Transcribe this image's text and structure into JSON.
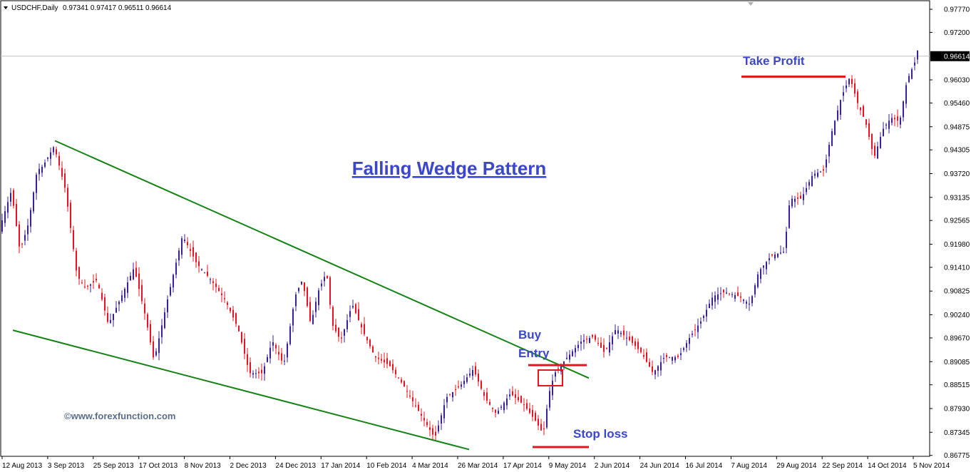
{
  "header": {
    "symbol": "USDCHF,Daily",
    "ohlc": "0.97341 0.97417 0.96511 0.96614"
  },
  "watermark": "©www.forexfunction.com",
  "colors": {
    "bull": "#3c1e96",
    "bear": "#e6141e",
    "trendline": "#148214",
    "annotation_text": "#3c46c8",
    "annotation_line": "#e6141e",
    "price_line": "#c0c0c0"
  },
  "chart_data": {
    "type": "candlestick",
    "title": "Falling Wedge Pattern",
    "ylim": [
      0.8677,
      0.9777
    ],
    "y_ticks": [
      "0.97770",
      "0.97200",
      "0.96614",
      "0.96030",
      "0.95460",
      "0.94875",
      "0.94305",
      "0.93720",
      "0.93135",
      "0.92565",
      "0.91980",
      "0.91410",
      "0.90825",
      "0.90240",
      "0.89670",
      "0.89085",
      "0.88515",
      "0.87930",
      "0.87345",
      "0.86775"
    ],
    "current_price": "0.96614",
    "x_ticks": [
      "12 Aug 2013",
      "3 Sep 2013",
      "25 Sep 2013",
      "17 Oct 2013",
      "8 Nov 2013",
      "2 Dec 2013",
      "24 Dec 2013",
      "17 Jan 2014",
      "10 Feb 2014",
      "4 Mar 2014",
      "26 Mar 2014",
      "17 Apr 2014",
      "9 May 2014",
      "2 Jun 2014",
      "24 Jun 2014",
      "16 Jul 2014",
      "7 Aug 2014",
      "29 Aug 2014",
      "22 Sep 2014",
      "14 Oct 2014",
      "5 Nov 2014"
    ],
    "path": [
      [
        0,
        0.924
      ],
      [
        16,
        0.933
      ],
      [
        28,
        0.918
      ],
      [
        40,
        0.925
      ],
      [
        52,
        0.938
      ],
      [
        60,
        0.939
      ],
      [
        76,
        0.944
      ],
      [
        92,
        0.933
      ],
      [
        108,
        0.912
      ],
      [
        120,
        0.909
      ],
      [
        136,
        0.911
      ],
      [
        152,
        0.9
      ],
      [
        168,
        0.906
      ],
      [
        188,
        0.914
      ],
      [
        204,
        0.902
      ],
      [
        216,
        0.891
      ],
      [
        236,
        0.907
      ],
      [
        256,
        0.922
      ],
      [
        276,
        0.915
      ],
      [
        296,
        0.911
      ],
      [
        316,
        0.906
      ],
      [
        334,
        0.899
      ],
      [
        350,
        0.888
      ],
      [
        368,
        0.888
      ],
      [
        382,
        0.896
      ],
      [
        398,
        0.89
      ],
      [
        414,
        0.907
      ],
      [
        424,
        0.911
      ],
      [
        436,
        0.9
      ],
      [
        446,
        0.908
      ],
      [
        458,
        0.913
      ],
      [
        466,
        0.9
      ],
      [
        478,
        0.896
      ],
      [
        494,
        0.905
      ],
      [
        510,
        0.898
      ],
      [
        526,
        0.892
      ],
      [
        546,
        0.89
      ],
      [
        566,
        0.885
      ],
      [
        586,
        0.879
      ],
      [
        610,
        0.872
      ],
      [
        626,
        0.882
      ],
      [
        646,
        0.885
      ],
      [
        664,
        0.889
      ],
      [
        680,
        0.882
      ],
      [
        696,
        0.878
      ],
      [
        716,
        0.883
      ],
      [
        736,
        0.88
      ],
      [
        752,
        0.876
      ],
      [
        762,
        0.873
      ],
      [
        770,
        0.883
      ],
      [
        778,
        0.888
      ],
      [
        796,
        0.892
      ],
      [
        816,
        0.896
      ],
      [
        832,
        0.897
      ],
      [
        848,
        0.893
      ],
      [
        864,
        0.899
      ],
      [
        884,
        0.896
      ],
      [
        900,
        0.893
      ],
      [
        916,
        0.888
      ],
      [
        932,
        0.892
      ],
      [
        952,
        0.892
      ],
      [
        968,
        0.897
      ],
      [
        984,
        0.901
      ],
      [
        1000,
        0.907
      ],
      [
        1016,
        0.908
      ],
      [
        1036,
        0.907
      ],
      [
        1052,
        0.905
      ],
      [
        1064,
        0.913
      ],
      [
        1082,
        0.917
      ],
      [
        1100,
        0.918
      ],
      [
        1108,
        0.931
      ],
      [
        1124,
        0.931
      ],
      [
        1140,
        0.937
      ],
      [
        1156,
        0.938
      ],
      [
        1166,
        0.947
      ],
      [
        1180,
        0.956
      ],
      [
        1192,
        0.961
      ],
      [
        1204,
        0.954
      ],
      [
        1214,
        0.95
      ],
      [
        1226,
        0.941
      ],
      [
        1238,
        0.948
      ],
      [
        1250,
        0.951
      ],
      [
        1262,
        0.95
      ],
      [
        1272,
        0.96
      ],
      [
        1284,
        0.965
      ],
      [
        1290,
        0.97
      ]
    ],
    "trendlines": [
      {
        "from": [
          77,
          0.9453
        ],
        "to": [
          826,
          0.8868
        ]
      },
      {
        "from": [
          18,
          0.8986
        ],
        "to": [
          658,
          0.8692
        ]
      }
    ],
    "annotations": {
      "buy_entry": {
        "line1": "Buy",
        "line2": "Entry",
        "level": 0.89
      },
      "stop_loss": {
        "label": "Stop loss",
        "level": 0.8698
      },
      "take_profit": {
        "label": "Take Profit",
        "level": 0.9611
      }
    }
  }
}
